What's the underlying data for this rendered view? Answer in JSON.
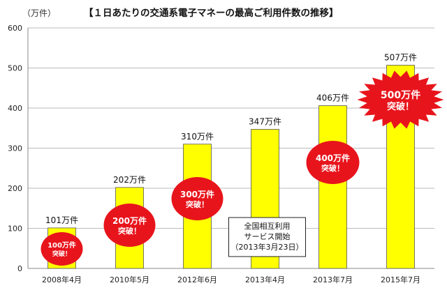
{
  "chart_data": {
    "type": "bar",
    "title": "【１日あたりの交通系電子マネーの最高ご利用件数の推移】",
    "ylabel": "（万件）",
    "xlabel": "",
    "categories": [
      "2008年4月",
      "2010年5月",
      "2012年6月",
      "2013年4月",
      "2013年7月",
      "2015年7月"
    ],
    "values": [
      101,
      202,
      310,
      347,
      406,
      507
    ],
    "data_labels": [
      "101万件",
      "202万件",
      "310万件",
      "347万件",
      "406万件",
      "507万件"
    ],
    "ylim": [
      0,
      600
    ],
    "yticks": [
      0,
      100,
      200,
      300,
      400,
      500,
      600
    ],
    "grid": true,
    "bar_color": "#ffff00",
    "badge_color": "#e8141c",
    "badges": [
      {
        "category": "2008年4月",
        "line1": "100万件",
        "line2": "突破！",
        "shape": "ellipse"
      },
      {
        "category": "2010年5月",
        "line1": "200万件",
        "line2": "突破！",
        "shape": "ellipse"
      },
      {
        "category": "2012年6月",
        "line1": "300万件",
        "line2": "突破！",
        "shape": "ellipse"
      },
      {
        "category": "2013年7月",
        "line1": "400万件",
        "line2": "突破！",
        "shape": "ellipse"
      },
      {
        "category": "2015年7月",
        "line1": "500万件",
        "line2": "突破！",
        "shape": "starburst"
      }
    ],
    "annotation": {
      "category": "2013年4月",
      "lines": [
        "全国相互利用",
        "サービス開始",
        "（2013年3月23日）"
      ]
    }
  }
}
